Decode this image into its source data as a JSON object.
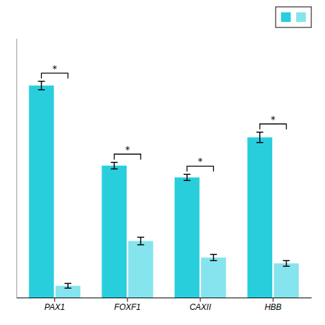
{
  "chart_data": {
    "type": "bar",
    "categories": [
      "PAX1",
      "FOXF1",
      "CAXII",
      "HBB"
    ],
    "series": [
      {
        "color": "#29CEDD",
        "values": [
          9.0,
          5.6,
          5.1,
          6.8
        ],
        "errors": [
          0.18,
          0.14,
          0.13,
          0.22
        ]
      },
      {
        "color": "#85E4ED",
        "values": [
          0.5,
          2.4,
          1.7,
          1.45
        ],
        "errors": [
          0.1,
          0.16,
          0.13,
          0.12
        ]
      }
    ],
    "ylim": [
      0,
      11.0
    ],
    "annotations": [
      "*",
      "*",
      "*",
      "*"
    ],
    "legend": "upper right",
    "tick_labels": "x"
  }
}
